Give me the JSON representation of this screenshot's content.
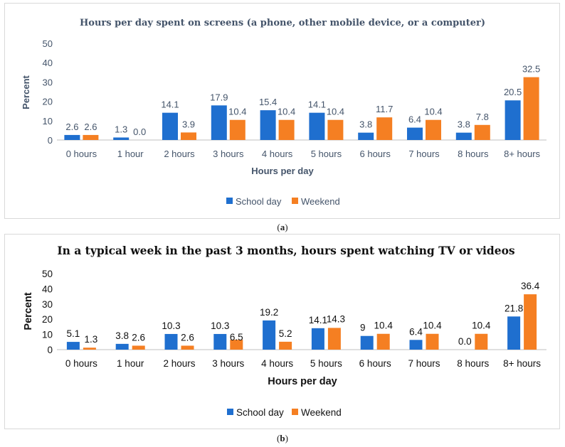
{
  "colors": {
    "school": "#1f6fcf",
    "weekend": "#f57f22"
  },
  "chart_data": [
    {
      "type": "bar",
      "title": "Hours per day spent on screens (a phone, other mobile device, or a computer)",
      "xlabel": "Hours per day",
      "ylabel": "Percent",
      "ylim": [
        0,
        50
      ],
      "yticks": [
        0,
        10,
        20,
        30,
        40,
        50
      ],
      "categories": [
        "0 hours",
        "1 hour",
        "2 hours",
        "3 hours",
        "4 hours",
        "5 hours",
        "6 hours",
        "7 hours",
        "8 hours",
        "8+ hours"
      ],
      "series": [
        {
          "name": "School day",
          "values": [
            2.6,
            1.3,
            14.1,
            17.9,
            15.4,
            14.1,
            3.8,
            6.4,
            3.8,
            20.5
          ],
          "labels": [
            "2.6",
            "1.3",
            "14.1",
            "17.9",
            "15.4",
            "14.1",
            "3.8",
            "6.4",
            "3.8",
            "20.5"
          ]
        },
        {
          "name": "Weekend",
          "values": [
            2.6,
            0.0,
            3.9,
            10.4,
            10.4,
            10.4,
            11.7,
            10.4,
            7.8,
            32.5
          ],
          "labels": [
            "2.6",
            "0.0",
            "3.9",
            "10.4",
            "10.4",
            "10.4",
            "11.7",
            "10.4",
            "7.8",
            "32.5"
          ]
        }
      ],
      "legend": "bottom",
      "caption": "a"
    },
    {
      "type": "bar",
      "title": "In a typical week in the past 3 months, hours spent watching TV or videos",
      "xlabel": "Hours per day",
      "ylabel": "Percent",
      "ylim": [
        0,
        50
      ],
      "yticks": [
        0,
        10,
        20,
        30,
        40,
        50
      ],
      "categories": [
        "0 hours",
        "1 hour",
        "2 hours",
        "3 hours",
        "4 hours",
        "5 hours",
        "6 hours",
        "7 hours",
        "8 hours",
        "8+ hours"
      ],
      "series": [
        {
          "name": "School day",
          "values": [
            5.1,
            3.8,
            10.3,
            10.3,
            19.2,
            14.1,
            9,
            6.4,
            0.0,
            21.8
          ],
          "labels": [
            "5.1",
            "3.8",
            "10.3",
            "10.3",
            "19.2",
            "14.1",
            "9",
            "6.4",
            "0.0",
            "21.8"
          ]
        },
        {
          "name": "Weekend",
          "values": [
            1.3,
            2.6,
            2.6,
            6.5,
            5.2,
            14.3,
            10.4,
            10.4,
            10.4,
            36.4
          ],
          "labels": [
            "1.3",
            "2.6",
            "2.6",
            "6.5",
            "5.2",
            "14.3",
            "10.4",
            "10.4",
            "10.4",
            "36.4"
          ]
        }
      ],
      "legend": "bottom",
      "caption": "b"
    }
  ]
}
